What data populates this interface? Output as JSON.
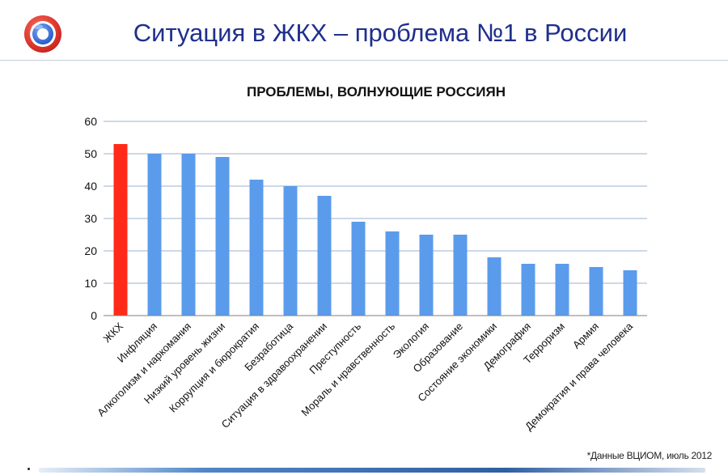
{
  "slide": {
    "title": "Ситуация в ЖКХ – проблема №1 в России",
    "source_note": "*Данные ВЦИОМ, июль 2012"
  },
  "logo": {
    "icon": "ring-logo-icon",
    "colors": [
      "#e8403b",
      "#2f6fd6",
      "#ffffff"
    ]
  },
  "colors": {
    "title": "#1f2f8c",
    "bar_default": "#5b9bec",
    "bar_highlight": "#ff2a1a",
    "grid": "#9bb3cf"
  },
  "chart_data": {
    "type": "bar",
    "title": "ПРОБЛЕМЫ, ВОЛНУЮЩИЕ РОССИЯН",
    "xlabel": "",
    "ylabel": "",
    "ylim": [
      0,
      60
    ],
    "yticks": [
      0,
      10,
      20,
      30,
      40,
      50,
      60
    ],
    "grid": true,
    "legend": "none",
    "highlight_index": 0,
    "categories": [
      "ЖКХ",
      "Инфляция",
      "Алкоголизм и наркомания",
      "Низкий уровень жизни",
      "Коррупция и бюрократия",
      "Безработица",
      "Ситуация в здравоохранении",
      "Преступность",
      "Мораль и нравственность",
      "Экология",
      "Образование",
      "Состояние экономики",
      "Демография",
      "Терроризм",
      "Армия",
      "Демократия и права человека"
    ],
    "values": [
      53,
      50,
      50,
      49,
      42,
      40,
      37,
      29,
      26,
      25,
      25,
      18,
      16,
      16,
      15,
      14
    ]
  }
}
